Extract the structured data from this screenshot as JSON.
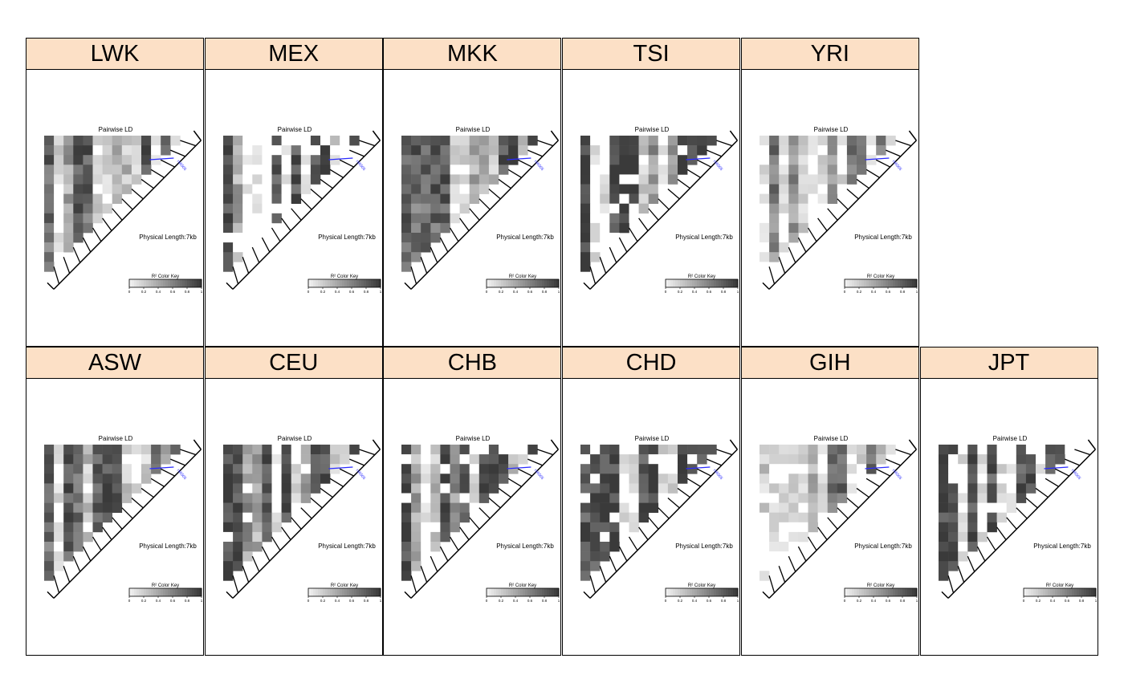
{
  "chart_data": {
    "type": "heatmap",
    "panel_title": "Pairwise LD",
    "length_label": "Physical Length:7kb",
    "snp_label": "rs6505",
    "colorkey_label": "R² Color Key",
    "colorkey_ticks": [
      "0",
      "0.2",
      "0.4",
      "0.6",
      "0.8",
      "1"
    ],
    "colorkey_range": [
      0,
      1
    ],
    "colors": {
      "strip_fill": "#fce0c6",
      "snp_label": "#2a2aff",
      "high": "#3a3a3a",
      "low": "#f0f0f0"
    },
    "panels": [
      {
        "name": "LWK",
        "row": 0,
        "col": 0,
        "style": "mixed",
        "seed": 11
      },
      {
        "name": "MEX",
        "row": 0,
        "col": 1,
        "style": "block",
        "seed": 23
      },
      {
        "name": "MKK",
        "row": 0,
        "col": 2,
        "style": "mixed",
        "seed": 37
      },
      {
        "name": "TSI",
        "row": 0,
        "col": 3,
        "style": "block",
        "seed": 41
      },
      {
        "name": "YRI",
        "row": 0,
        "col": 4,
        "style": "light",
        "seed": 53
      },
      {
        "name": "ASW",
        "row": 1,
        "col": 0,
        "style": "mixed",
        "seed": 67
      },
      {
        "name": "CEU",
        "row": 1,
        "col": 1,
        "style": "block",
        "seed": 71
      },
      {
        "name": "CHB",
        "row": 1,
        "col": 2,
        "style": "block",
        "seed": 83
      },
      {
        "name": "CHD",
        "row": 1,
        "col": 3,
        "style": "block",
        "seed": 97
      },
      {
        "name": "GIH",
        "row": 1,
        "col": 4,
        "style": "light",
        "seed": 101
      },
      {
        "name": "JPT",
        "row": 1,
        "col": 5,
        "style": "block",
        "seed": 113
      }
    ]
  }
}
